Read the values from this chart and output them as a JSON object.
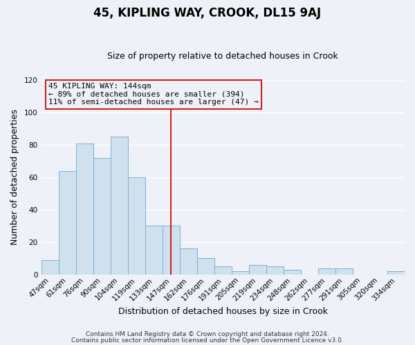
{
  "title": "45, KIPLING WAY, CROOK, DL15 9AJ",
  "subtitle": "Size of property relative to detached houses in Crook",
  "xlabel": "Distribution of detached houses by size in Crook",
  "ylabel": "Number of detached properties",
  "bar_labels": [
    "47sqm",
    "61sqm",
    "76sqm",
    "90sqm",
    "104sqm",
    "119sqm",
    "133sqm",
    "147sqm",
    "162sqm",
    "176sqm",
    "191sqm",
    "205sqm",
    "219sqm",
    "234sqm",
    "248sqm",
    "262sqm",
    "277sqm",
    "291sqm",
    "305sqm",
    "320sqm",
    "334sqm"
  ],
  "bar_values": [
    9,
    64,
    81,
    72,
    85,
    60,
    30,
    30,
    16,
    10,
    5,
    2,
    6,
    5,
    3,
    0,
    4,
    4,
    0,
    0,
    2
  ],
  "bar_color": "#cfe0ef",
  "bar_edge_color": "#7ab0d4",
  "vline_x_index": 7,
  "vline_color": "#cc2222",
  "annotation_line1": "45 KIPLING WAY: 144sqm",
  "annotation_line2": "← 89% of detached houses are smaller (394)",
  "annotation_line3": "11% of semi-detached houses are larger (47) →",
  "annotation_box_edge": "#cc2222",
  "ylim": [
    0,
    120
  ],
  "yticks": [
    0,
    20,
    40,
    60,
    80,
    100,
    120
  ],
  "footer1": "Contains HM Land Registry data © Crown copyright and database right 2024.",
  "footer2": "Contains public sector information licensed under the Open Government Licence v3.0.",
  "background_color": "#eef2f8",
  "plot_bg_color": "#eef2f8",
  "grid_color": "#ffffff",
  "title_fontsize": 12,
  "subtitle_fontsize": 9,
  "xlabel_fontsize": 9,
  "ylabel_fontsize": 9,
  "tick_fontsize": 7.5,
  "footer_fontsize": 6.5
}
